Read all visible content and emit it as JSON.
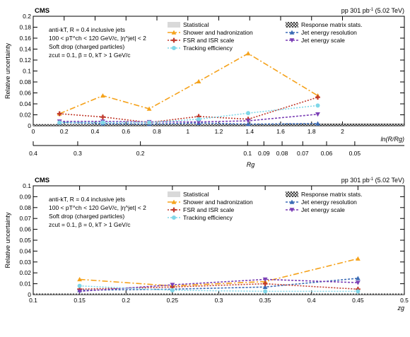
{
  "figure": {
    "panels": [
      {
        "experiment": "CMS",
        "lumi_label": "pp 301 pb",
        "lumi_exp": "-1",
        "energy": "(5.02 TeV)",
        "ylabel": "Relative uncertainty",
        "info_lines": [
          "anti-kT, R = 0.4 inclusive jets",
          "100 < pT^ch < 120 GeV/c, |η^jet| < 2",
          "Soft drop (charged particles)",
          "zcut = 0.1, β = 0, kT > 1 GeV/c"
        ]
      },
      {
        "experiment": "CMS",
        "lumi_label": "pp 301 pb",
        "lumi_exp": "-1",
        "energy": "(5.02 TeV)",
        "ylabel": "Relative uncertainty",
        "info_lines": [
          "anti-kT, R = 0.4 inclusive jets",
          "100 < pT^ch < 120 GeV/c, |η^jet| < 2",
          "Soft drop (charged particles)",
          "zcut = 0.1, β = 0, kT > 1 GeV/c"
        ]
      }
    ]
  },
  "chart_data": [
    {
      "type": "line",
      "xlabel": "ln(R/Rg)",
      "secondary_xlabel": "Rg",
      "xlim": [
        0,
        2.4
      ],
      "ylim": [
        0,
        0.2
      ],
      "xticks": [
        0,
        0.2,
        0.4,
        0.6,
        0.8,
        1,
        1.2,
        1.4,
        1.6,
        1.8,
        2
      ],
      "yticks": [
        0,
        0.02,
        0.04,
        0.06,
        0.08,
        0.1,
        0.12,
        0.14,
        0.16,
        0.18,
        0.2
      ],
      "secondary_ticks": [
        0.4,
        0.3,
        0.2,
        0.1,
        0.09,
        0.08,
        0.07,
        0.06,
        0.05
      ],
      "x": [
        0.17,
        0.45,
        0.75,
        1.07,
        1.39,
        1.84
      ],
      "series": [
        {
          "name": "Statistical",
          "style": "band",
          "color": "#d9d9d9",
          "values": [
            0.003,
            0.003,
            0.003,
            0.003,
            0.003,
            0.004
          ]
        },
        {
          "name": "Response matrix stats.",
          "style": "hatch",
          "color": "#333333",
          "values": [
            0.003,
            0.003,
            0.003,
            0.003,
            0.003,
            0.004
          ]
        },
        {
          "name": "Shower and hadronization",
          "style": "line",
          "color": "#f5a21b",
          "marker": "triangle-up",
          "dash": "8,3,2,3",
          "values": [
            0.022,
            0.055,
            0.031,
            0.081,
            0.132,
            0.055
          ]
        },
        {
          "name": "Jet energy resolution",
          "style": "line",
          "color": "#3b6bb5",
          "marker": "triangle-up",
          "dash": "3,2",
          "values": [
            0.006,
            0.004,
            0.003,
            0.005,
            0.003,
            0.004
          ]
        },
        {
          "name": "FSR and ISR scale",
          "style": "line",
          "color": "#c0392b",
          "marker": "cross",
          "dash": "2,2",
          "values": [
            0.022,
            0.016,
            0.006,
            0.017,
            0.012,
            0.052
          ]
        },
        {
          "name": "Jet energy scale",
          "style": "line",
          "color": "#7b3fb5",
          "marker": "triangle-down",
          "dash": "3,2",
          "values": [
            0.008,
            0.008,
            0.007,
            0.007,
            0.009,
            0.021
          ]
        },
        {
          "name": "Tracking efficiency",
          "style": "line",
          "color": "#7fd7e8",
          "marker": "circle",
          "dash": "2,2",
          "values": [
            0.006,
            0.006,
            0.006,
            0.012,
            0.023,
            0.037
          ]
        }
      ],
      "legend": "top-right"
    },
    {
      "type": "line",
      "xlabel": "zg",
      "xlim": [
        0.1,
        0.5
      ],
      "ylim": [
        0,
        0.1
      ],
      "xticks": [
        0.1,
        0.15,
        0.2,
        0.25,
        0.3,
        0.35,
        0.4,
        0.45,
        0.5
      ],
      "yticks": [
        0,
        0.01,
        0.02,
        0.03,
        0.04,
        0.05,
        0.06,
        0.07,
        0.08,
        0.09,
        0.1
      ],
      "x": [
        0.15,
        0.25,
        0.35,
        0.45
      ],
      "series": [
        {
          "name": "Statistical",
          "style": "band",
          "color": "#d9d9d9",
          "values": [
            0.001,
            0.001,
            0.001,
            0.001
          ]
        },
        {
          "name": "Response matrix stats.",
          "style": "hatch",
          "color": "#333333",
          "values": [
            0.001,
            0.001,
            0.001,
            0.001
          ]
        },
        {
          "name": "Shower and hadronization",
          "style": "line",
          "color": "#f5a21b",
          "marker": "triangle-up",
          "dash": "8,3,2,3",
          "values": [
            0.014,
            0.008,
            0.012,
            0.033
          ]
        },
        {
          "name": "Jet energy resolution",
          "style": "line",
          "color": "#3b6bb5",
          "marker": "triangle-up",
          "dash": "3,2",
          "values": [
            0.004,
            0.005,
            0.007,
            0.015
          ]
        },
        {
          "name": "FSR and ISR scale",
          "style": "line",
          "color": "#c0392b",
          "marker": "cross",
          "dash": "2,2",
          "values": [
            0.005,
            0.007,
            0.01,
            0.005
          ]
        },
        {
          "name": "Jet energy scale",
          "style": "line",
          "color": "#7b3fb5",
          "marker": "triangle-down",
          "dash": "3,2",
          "values": [
            0.003,
            0.009,
            0.014,
            0.011
          ]
        },
        {
          "name": "Tracking efficiency",
          "style": "line",
          "color": "#7fd7e8",
          "marker": "circle",
          "dash": "2,2",
          "values": [
            0.008,
            0.004,
            0.003,
            0.003
          ]
        }
      ],
      "legend": "top-right"
    }
  ]
}
